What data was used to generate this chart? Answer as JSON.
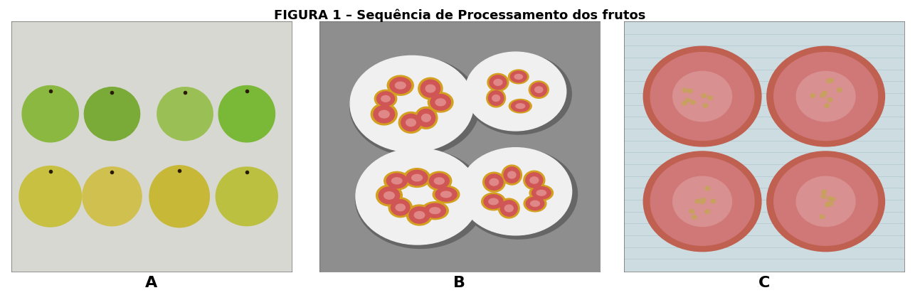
{
  "title": "FIGURA 1 – Sequência de Processamento dos frutos",
  "title_fontsize": 13,
  "title_fontweight": "bold",
  "labels": [
    "A",
    "B",
    "C"
  ],
  "label_fontsize": 16,
  "label_fontweight": "bold",
  "figure_width": 12.93,
  "figure_height": 4.29,
  "dpi": 100,
  "background_color": "#ffffff",
  "panel_A_bg": "#d8d8d2",
  "panel_B_bg": "#8e8e8e",
  "panel_C_bg": "#cddce0",
  "guava_whole_colors": [
    "#8ab84a",
    "#7aaa3a",
    "#9ac05a",
    "#a0c060",
    "#c8c850",
    "#d4c860",
    "#bcc048",
    "#c0c850"
  ],
  "guava_slice_outer": "#d4a830",
  "guava_slice_inner": "#d06060",
  "guava_slice_center": "#e08080",
  "plate_color": "#f0f0f0",
  "guava_section_color": "#c87878",
  "guava_section_bg": "#d49090"
}
